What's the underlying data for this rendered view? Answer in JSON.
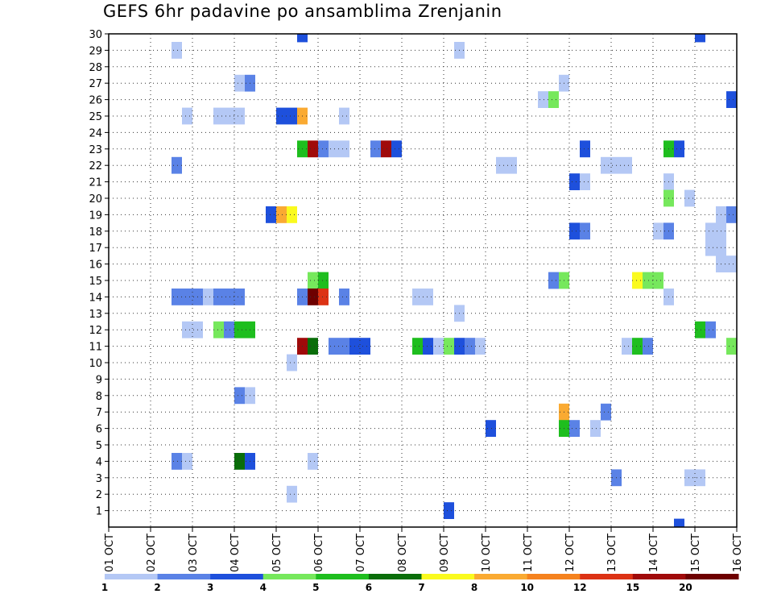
{
  "chart_data": {
    "type": "heatmap",
    "title": "GEFS 6hr padavine po ansamblima Zrenjanin",
    "x_tick_labels": [
      "01 OCT",
      "02 OCT",
      "03 OCT",
      "04 OCT",
      "05 OCT",
      "06 OCT",
      "07 OCT",
      "08 OCT",
      "09 OCT",
      "10 OCT",
      "11 OCT",
      "12 OCT",
      "13 OCT",
      "14 OCT",
      "15 OCT",
      "16 OCT"
    ],
    "y_tick_labels": [
      "1",
      "2",
      "3",
      "4",
      "5",
      "6",
      "7",
      "8",
      "9",
      "10",
      "11",
      "12",
      "13",
      "14",
      "15",
      "16",
      "17",
      "18",
      "19",
      "20",
      "21",
      "22",
      "23",
      "24",
      "25",
      "26",
      "27",
      "28",
      "29",
      "30"
    ],
    "xlim_days": [
      0,
      15
    ],
    "ylim_members": [
      0,
      30
    ],
    "time_step_days": 0.25,
    "grid": "dotted",
    "colorbar_labels": [
      "1",
      "2",
      "3",
      "4",
      "5",
      "6",
      "7",
      "8",
      "10",
      "12",
      "15",
      "20"
    ],
    "colorbar_colors": [
      "#b4c8f5",
      "#5a82e6",
      "#1e50dc",
      "#76e85c",
      "#1ebe1e",
      "#0a6e0a",
      "#fafa1e",
      "#faaa32",
      "#f5821e",
      "#dc3214",
      "#a00a0a",
      "#6e0000"
    ],
    "cells": [
      {
        "member": 30,
        "day": 4.625,
        "bin": 2
      },
      {
        "member": 30,
        "day": 14.125,
        "bin": 2
      },
      {
        "member": 29,
        "day": 1.625,
        "bin": 0
      },
      {
        "member": 29,
        "day": 8.375,
        "bin": 0
      },
      {
        "member": 27,
        "day": 3.125,
        "bin": 0
      },
      {
        "member": 27,
        "day": 3.375,
        "bin": 1
      },
      {
        "member": 27,
        "day": 10.875,
        "bin": 0
      },
      {
        "member": 26,
        "day": 10.375,
        "bin": 0
      },
      {
        "member": 26,
        "day": 10.625,
        "bin": 3
      },
      {
        "member": 26,
        "day": 14.875,
        "bin": 2
      },
      {
        "member": 25,
        "day": 1.875,
        "bin": 0
      },
      {
        "member": 25,
        "day": 2.625,
        "bin": 0
      },
      {
        "member": 25,
        "day": 2.875,
        "bin": 0
      },
      {
        "member": 25,
        "day": 3.125,
        "bin": 0
      },
      {
        "member": 25,
        "day": 4.125,
        "bin": 2
      },
      {
        "member": 25,
        "day": 4.375,
        "bin": 2
      },
      {
        "member": 25,
        "day": 4.625,
        "bin": 7
      },
      {
        "member": 25,
        "day": 5.625,
        "bin": 0
      },
      {
        "member": 23,
        "day": 4.625,
        "bin": 4
      },
      {
        "member": 23,
        "day": 4.875,
        "bin": 10
      },
      {
        "member": 23,
        "day": 5.125,
        "bin": 1
      },
      {
        "member": 23,
        "day": 5.375,
        "bin": 0
      },
      {
        "member": 23,
        "day": 5.625,
        "bin": 0
      },
      {
        "member": 23,
        "day": 6.375,
        "bin": 1
      },
      {
        "member": 23,
        "day": 6.625,
        "bin": 10
      },
      {
        "member": 23,
        "day": 6.875,
        "bin": 2
      },
      {
        "member": 23,
        "day": 11.375,
        "bin": 2
      },
      {
        "member": 23,
        "day": 13.375,
        "bin": 4
      },
      {
        "member": 23,
        "day": 13.625,
        "bin": 2
      },
      {
        "member": 22,
        "day": 1.625,
        "bin": 1
      },
      {
        "member": 22,
        "day": 9.375,
        "bin": 0
      },
      {
        "member": 22,
        "day": 9.625,
        "bin": 0
      },
      {
        "member": 22,
        "day": 11.875,
        "bin": 0
      },
      {
        "member": 22,
        "day": 12.125,
        "bin": 0
      },
      {
        "member": 22,
        "day": 12.375,
        "bin": 0
      },
      {
        "member": 21,
        "day": 11.125,
        "bin": 2
      },
      {
        "member": 21,
        "day": 11.375,
        "bin": 0
      },
      {
        "member": 21,
        "day": 13.375,
        "bin": 0
      },
      {
        "member": 20,
        "day": 13.375,
        "bin": 3
      },
      {
        "member": 20,
        "day": 13.875,
        "bin": 0
      },
      {
        "member": 19,
        "day": 3.875,
        "bin": 2
      },
      {
        "member": 19,
        "day": 4.125,
        "bin": 7
      },
      {
        "member": 19,
        "day": 4.375,
        "bin": 6
      },
      {
        "member": 19,
        "day": 14.625,
        "bin": 0
      },
      {
        "member": 19,
        "day": 14.875,
        "bin": 1
      },
      {
        "member": 18,
        "day": 11.125,
        "bin": 2
      },
      {
        "member": 18,
        "day": 11.375,
        "bin": 1
      },
      {
        "member": 18,
        "day": 13.125,
        "bin": 0
      },
      {
        "member": 18,
        "day": 13.375,
        "bin": 1
      },
      {
        "member": 18,
        "day": 14.375,
        "bin": 0
      },
      {
        "member": 18,
        "day": 14.625,
        "bin": 0
      },
      {
        "member": 17,
        "day": 14.375,
        "bin": 0
      },
      {
        "member": 17,
        "day": 14.625,
        "bin": 0
      },
      {
        "member": 16,
        "day": 14.625,
        "bin": 0
      },
      {
        "member": 16,
        "day": 14.875,
        "bin": 0
      },
      {
        "member": 15,
        "day": 4.875,
        "bin": 3
      },
      {
        "member": 15,
        "day": 5.125,
        "bin": 4
      },
      {
        "member": 15,
        "day": 10.625,
        "bin": 1
      },
      {
        "member": 15,
        "day": 10.875,
        "bin": 3
      },
      {
        "member": 15,
        "day": 12.625,
        "bin": 6
      },
      {
        "member": 15,
        "day": 12.875,
        "bin": 3
      },
      {
        "member": 15,
        "day": 13.125,
        "bin": 3
      },
      {
        "member": 14,
        "day": 1.625,
        "bin": 1
      },
      {
        "member": 14,
        "day": 1.875,
        "bin": 1
      },
      {
        "member": 14,
        "day": 2.125,
        "bin": 1
      },
      {
        "member": 14,
        "day": 2.375,
        "bin": 0
      },
      {
        "member": 14,
        "day": 2.625,
        "bin": 1
      },
      {
        "member": 14,
        "day": 2.875,
        "bin": 1
      },
      {
        "member": 14,
        "day": 3.125,
        "bin": 1
      },
      {
        "member": 14,
        "day": 4.625,
        "bin": 1
      },
      {
        "member": 14,
        "day": 4.875,
        "bin": 11
      },
      {
        "member": 14,
        "day": 5.125,
        "bin": 9
      },
      {
        "member": 14,
        "day": 5.625,
        "bin": 1
      },
      {
        "member": 14,
        "day": 7.375,
        "bin": 0
      },
      {
        "member": 14,
        "day": 7.625,
        "bin": 0
      },
      {
        "member": 14,
        "day": 13.375,
        "bin": 0
      },
      {
        "member": 13,
        "day": 8.375,
        "bin": 0
      },
      {
        "member": 12,
        "day": 1.875,
        "bin": 0
      },
      {
        "member": 12,
        "day": 2.125,
        "bin": 0
      },
      {
        "member": 12,
        "day": 2.625,
        "bin": 3
      },
      {
        "member": 12,
        "day": 2.875,
        "bin": 1
      },
      {
        "member": 12,
        "day": 3.125,
        "bin": 4
      },
      {
        "member": 12,
        "day": 3.375,
        "bin": 4
      },
      {
        "member": 12,
        "day": 14.125,
        "bin": 4
      },
      {
        "member": 12,
        "day": 14.375,
        "bin": 1
      },
      {
        "member": 11,
        "day": 4.625,
        "bin": 10
      },
      {
        "member": 11,
        "day": 4.875,
        "bin": 5
      },
      {
        "member": 11,
        "day": 5.375,
        "bin": 1
      },
      {
        "member": 11,
        "day": 5.625,
        "bin": 1
      },
      {
        "member": 11,
        "day": 5.875,
        "bin": 2
      },
      {
        "member": 11,
        "day": 6.125,
        "bin": 2
      },
      {
        "member": 11,
        "day": 7.375,
        "bin": 4
      },
      {
        "member": 11,
        "day": 7.625,
        "bin": 2
      },
      {
        "member": 11,
        "day": 7.875,
        "bin": 0
      },
      {
        "member": 11,
        "day": 8.125,
        "bin": 3
      },
      {
        "member": 11,
        "day": 8.375,
        "bin": 2
      },
      {
        "member": 11,
        "day": 8.625,
        "bin": 1
      },
      {
        "member": 11,
        "day": 8.875,
        "bin": 0
      },
      {
        "member": 11,
        "day": 12.375,
        "bin": 0
      },
      {
        "member": 11,
        "day": 12.625,
        "bin": 4
      },
      {
        "member": 11,
        "day": 12.875,
        "bin": 1
      },
      {
        "member": 11,
        "day": 14.875,
        "bin": 3
      },
      {
        "member": 10,
        "day": 4.375,
        "bin": 0
      },
      {
        "member": 8,
        "day": 3.125,
        "bin": 1
      },
      {
        "member": 8,
        "day": 3.375,
        "bin": 0
      },
      {
        "member": 7,
        "day": 10.875,
        "bin": 7
      },
      {
        "member": 7,
        "day": 11.875,
        "bin": 1
      },
      {
        "member": 6,
        "day": 9.125,
        "bin": 2
      },
      {
        "member": 6,
        "day": 10.875,
        "bin": 4
      },
      {
        "member": 6,
        "day": 11.125,
        "bin": 1
      },
      {
        "member": 6,
        "day": 11.625,
        "bin": 0
      },
      {
        "member": 4,
        "day": 1.625,
        "bin": 1
      },
      {
        "member": 4,
        "day": 1.875,
        "bin": 0
      },
      {
        "member": 4,
        "day": 3.125,
        "bin": 5
      },
      {
        "member": 4,
        "day": 3.375,
        "bin": 2
      },
      {
        "member": 4,
        "day": 4.875,
        "bin": 0
      },
      {
        "member": 3,
        "day": 12.125,
        "bin": 1
      },
      {
        "member": 3,
        "day": 13.875,
        "bin": 0
      },
      {
        "member": 3,
        "day": 14.125,
        "bin": 0
      },
      {
        "member": 2,
        "day": 4.375,
        "bin": 0
      },
      {
        "member": 1,
        "day": 8.125,
        "bin": 2
      },
      {
        "member": 0,
        "day": 13.625,
        "bin": 2
      }
    ]
  }
}
